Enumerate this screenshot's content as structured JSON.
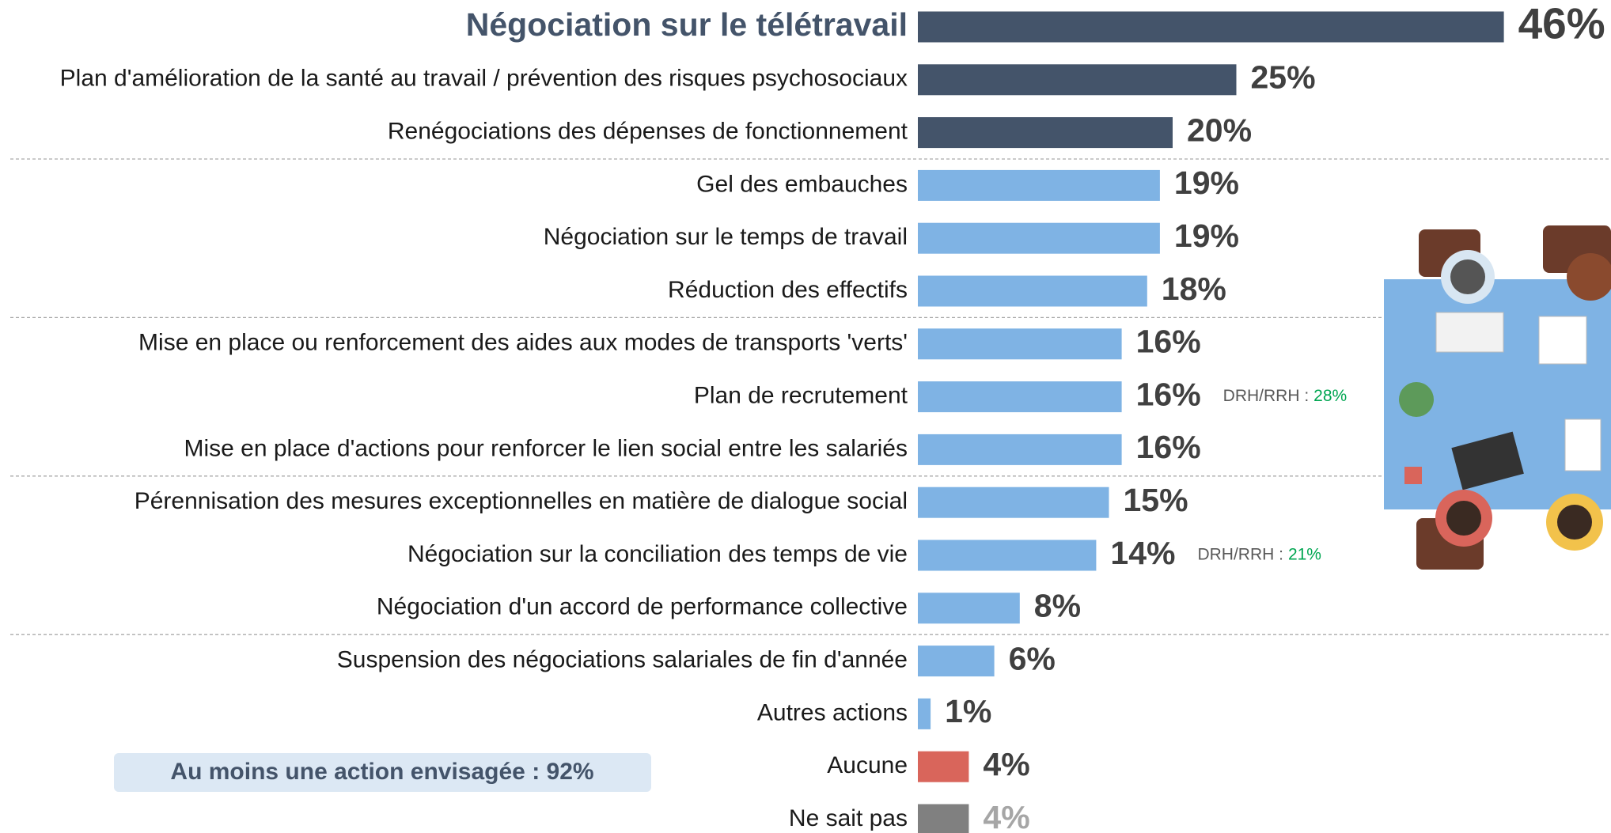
{
  "chart_data": {
    "type": "bar",
    "orientation": "horizontal",
    "categories": [
      "Négociation sur le télétravail",
      "Plan d'amélioration de la santé au travail / prévention des risques psychosociaux",
      "Renégociations des dépenses de fonctionnement",
      "Gel des embauches",
      "Négociation sur le temps de travail",
      "Réduction des effectifs",
      "Mise en place ou renforcement des aides aux modes de transports 'verts'",
      "Plan de recrutement",
      "Mise en place d'actions pour renforcer le lien social entre les salariés",
      "Pérennisation des mesures exceptionnelles en matière de dialogue social",
      "Négociation sur la conciliation des temps de vie",
      "Négociation d'un accord de performance collective",
      "Suspension des négociations salariales de fin d'année",
      "Autres actions",
      "Aucune",
      "Ne sait pas"
    ],
    "values": [
      46,
      25,
      20,
      19,
      19,
      18,
      16,
      16,
      16,
      15,
      14,
      8,
      6,
      1,
      4,
      4
    ],
    "value_labels": [
      "46%",
      "25%",
      "20%",
      "19%",
      "19%",
      "18%",
      "16%",
      "16%",
      "16%",
      "15%",
      "14%",
      "8%",
      "6%",
      "1%",
      "4%",
      "4%"
    ],
    "colors": [
      "#44546a",
      "#44546a",
      "#44546a",
      "#7fb3e4",
      "#7fb3e4",
      "#7fb3e4",
      "#7fb3e4",
      "#7fb3e4",
      "#7fb3e4",
      "#7fb3e4",
      "#7fb3e4",
      "#7fb3e4",
      "#7fb3e4",
      "#7fb3e4",
      "#d9655b",
      "#808080"
    ],
    "note_labels": [
      null,
      null,
      null,
      null,
      null,
      null,
      null,
      "DRH/RRH :",
      null,
      null,
      "DRH/RRH :",
      null,
      null,
      null,
      null,
      null
    ],
    "note_values": [
      null,
      null,
      null,
      null,
      null,
      null,
      null,
      "28%",
      null,
      null,
      "21%",
      null,
      null,
      null,
      null,
      null
    ],
    "summary": "Au moins une action envisagée : 92%"
  }
}
